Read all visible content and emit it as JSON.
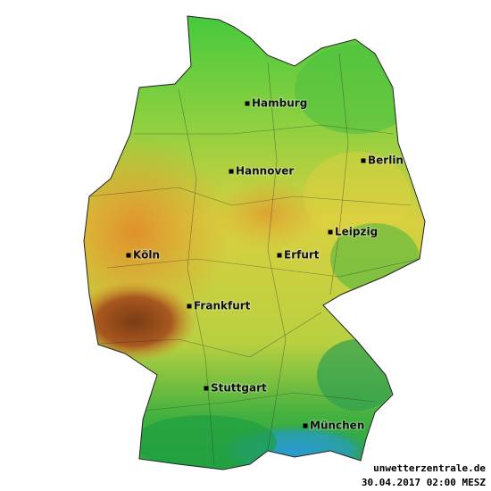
{
  "cities": [
    "Hamburg",
    "Hannover",
    "Berlin",
    "Leipzig",
    "Köln",
    "Erfurt",
    "Frankfurt",
    "Stuttgart",
    "München"
  ],
  "footer": {
    "source": "unwetterzentrale.de",
    "timestamp": "30.04.2017 02:00 MESZ"
  }
}
